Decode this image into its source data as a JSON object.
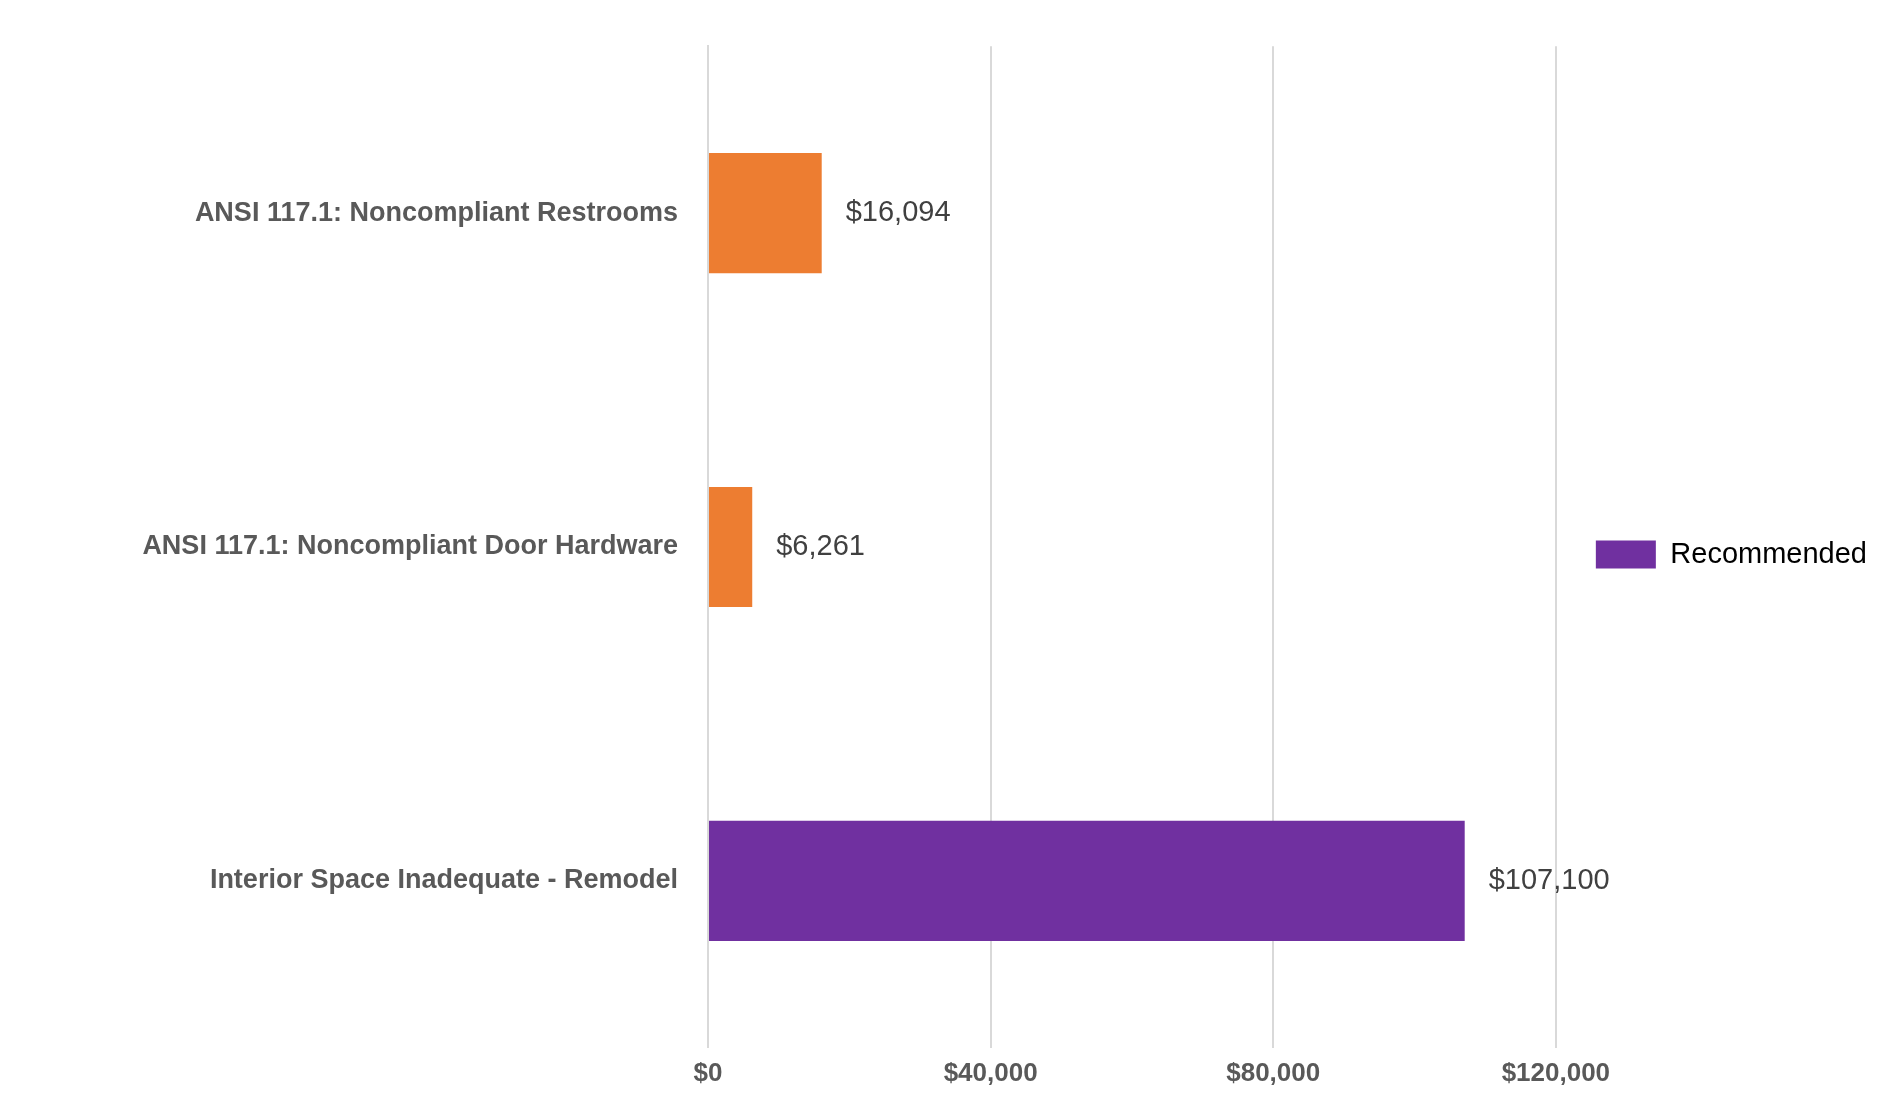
{
  "chart_data": {
    "type": "bar",
    "orientation": "horizontal",
    "stacked": true,
    "categories": [
      "ANSI 117.1: Noncompliant Restrooms",
      "ANSI 117.1: Noncompliant Door Hardware",
      "Interior Space Inadequate - Remodel"
    ],
    "series": [
      {
        "color": "#ed7d31",
        "values": [
          16094,
          6261,
          null
        ],
        "value_labels": [
          "$16,094",
          "$6,261",
          null
        ]
      },
      {
        "name": "Recommended",
        "color": "#7030a0",
        "values": [
          null,
          null,
          107100
        ],
        "value_labels": [
          null,
          null,
          "$107,100"
        ]
      }
    ],
    "xlim": [
      0,
      120000
    ],
    "xticks": [
      {
        "value": 0,
        "label": "$0"
      },
      {
        "value": 40000,
        "label": "$40,000"
      },
      {
        "value": 80000,
        "label": "$80,000"
      },
      {
        "value": 120000,
        "label": "$120,000"
      }
    ],
    "grid": "x",
    "legend": "right"
  }
}
